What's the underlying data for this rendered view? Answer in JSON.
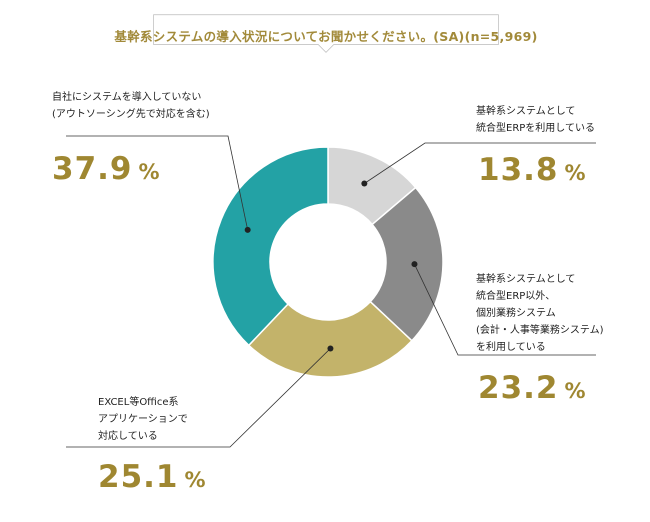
{
  "title": "基幹系システムの導入状況についてお聞かせください。(SA)(n=5,969)",
  "chart_data": {
    "type": "pie",
    "style": "donut",
    "slices": [
      {
        "label_lines": [
          "基幹系システムとして",
          "統合型ERPを利用している"
        ],
        "value": 13.8,
        "value_text": "13.8",
        "unit": "%",
        "color": "#d6d6d6"
      },
      {
        "label_lines": [
          "基幹系システムとして",
          "統合型ERP以外、",
          "個別業務システム",
          "(会計・人事等業務システム)",
          "を利用している"
        ],
        "value": 23.2,
        "value_text": "23.2",
        "unit": "%",
        "color": "#8a8a8a"
      },
      {
        "label_lines": [
          "EXCEL等Office系",
          "アプリケーションで",
          "対応している"
        ],
        "value": 25.1,
        "value_text": "25.1",
        "unit": "%",
        "color": "#c3b36a"
      },
      {
        "label_lines": [
          "自社にシステムを導入していない",
          "(アウトソーシング先で対応を含む)"
        ],
        "value": 37.9,
        "value_text": "37.9",
        "unit": "%",
        "color": "#23a2a5"
      }
    ]
  }
}
